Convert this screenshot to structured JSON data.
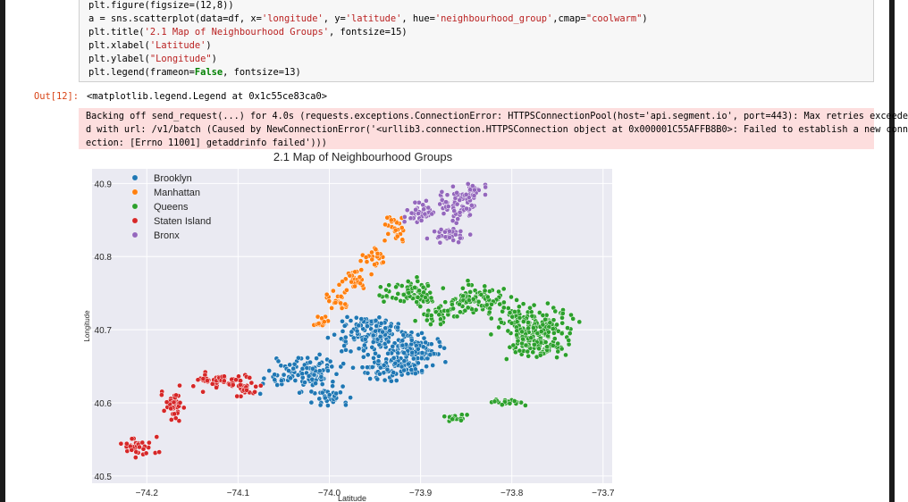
{
  "code": {
    "lines": [
      [
        "plt.figure(figsize=(12,8))"
      ],
      [
        "a = sns.scatterplot(data=df, x=",
        "'longitude'",
        ", y=",
        "'latitude'",
        ", hue=",
        "'neighbourhood_group'",
        ",cmap=",
        "\"coolwarm\"",
        ")"
      ],
      [
        "plt.title(",
        "'2.1 Map of Neighbourhood Groups'",
        ", fontsize=15)"
      ],
      [
        "plt.xlabel(",
        "'Latitude'",
        ")"
      ],
      [
        "plt.ylabel(",
        "\"Longitude\"",
        ")"
      ],
      [
        "plt.legend(frameon=",
        "False",
        ", fontsize=13)"
      ]
    ]
  },
  "output": {
    "prompt": "Out[12]:",
    "repr": "<matplotlib.legend.Legend at 0x1c55ce83ca0>"
  },
  "stderr": {
    "lines": [
      "Backing off send_request(...) for 4.0s (requests.exceptions.ConnectionError: HTTPSConnectionPool(host='api.segment.io', port=443): Max retries exceede",
      "d with url: /v1/batch (Caused by NewConnectionError('<urllib3.connection.HTTPSConnection object at 0x000001C55AFFB8B0>: Failed to establish a new conn",
      "ection: [Errno 11001] getaddrinfo failed')))"
    ]
  },
  "colors": {
    "Brooklyn": "#1f77b4",
    "Manhattan": "#ff7f0e",
    "Queens": "#2ca02c",
    "Staten Island": "#d62728",
    "Bronx": "#9467bd",
    "plot_bg": "#eaeaf2"
  },
  "chart_data": {
    "type": "scatter",
    "title": "2.1 Map of Neighbourhood Groups",
    "xlabel": "Latitude",
    "ylabel": "Longitude",
    "xlim": [
      -74.26,
      -73.69
    ],
    "ylim": [
      40.49,
      40.92
    ],
    "xticks": [
      -74.2,
      -74.1,
      -74.0,
      -73.9,
      -73.8,
      -73.7
    ],
    "yticks": [
      40.5,
      40.6,
      40.7,
      40.8,
      40.9
    ],
    "grid": true,
    "legend": "top-left",
    "series": [
      {
        "name": "Brooklyn",
        "regions": [
          [
            -74.03,
            40.64,
            0.055,
            0.032
          ],
          [
            -73.95,
            40.69,
            0.06,
            0.035
          ],
          [
            -73.93,
            40.65,
            0.055,
            0.03
          ],
          [
            -74.0,
            40.61,
            0.03,
            0.02
          ],
          [
            -73.9,
            40.67,
            0.04,
            0.03
          ],
          [
            -73.96,
            40.71,
            0.03,
            0.012
          ]
        ]
      },
      {
        "name": "Manhattan",
        "regions": [
          [
            -73.99,
            40.74,
            0.02,
            0.02
          ],
          [
            -73.97,
            40.77,
            0.025,
            0.02
          ],
          [
            -73.95,
            40.8,
            0.02,
            0.02
          ],
          [
            -73.93,
            40.84,
            0.018,
            0.025
          ],
          [
            -74.01,
            40.71,
            0.01,
            0.01
          ]
        ]
      },
      {
        "name": "Queens",
        "regions": [
          [
            -73.91,
            40.75,
            0.05,
            0.025
          ],
          [
            -73.84,
            40.74,
            0.05,
            0.03
          ],
          [
            -73.78,
            40.71,
            0.06,
            0.04
          ],
          [
            -73.88,
            40.72,
            0.03,
            0.02
          ],
          [
            -73.77,
            40.68,
            0.05,
            0.03
          ],
          [
            -73.8,
            40.6,
            0.04,
            0.006
          ],
          [
            -73.86,
            40.58,
            0.02,
            0.006
          ]
        ]
      },
      {
        "name": "Staten Island",
        "regions": [
          [
            -74.12,
            40.63,
            0.04,
            0.02
          ],
          [
            -74.17,
            40.6,
            0.02,
            0.03
          ],
          [
            -74.21,
            40.54,
            0.03,
            0.02
          ],
          [
            -74.09,
            40.62,
            0.02,
            0.02
          ]
        ]
      },
      {
        "name": "Bronx",
        "regions": [
          [
            -73.9,
            40.86,
            0.025,
            0.025
          ],
          [
            -73.86,
            40.87,
            0.035,
            0.03
          ],
          [
            -73.87,
            40.83,
            0.035,
            0.015
          ],
          [
            -73.84,
            40.89,
            0.02,
            0.02
          ]
        ]
      }
    ]
  }
}
